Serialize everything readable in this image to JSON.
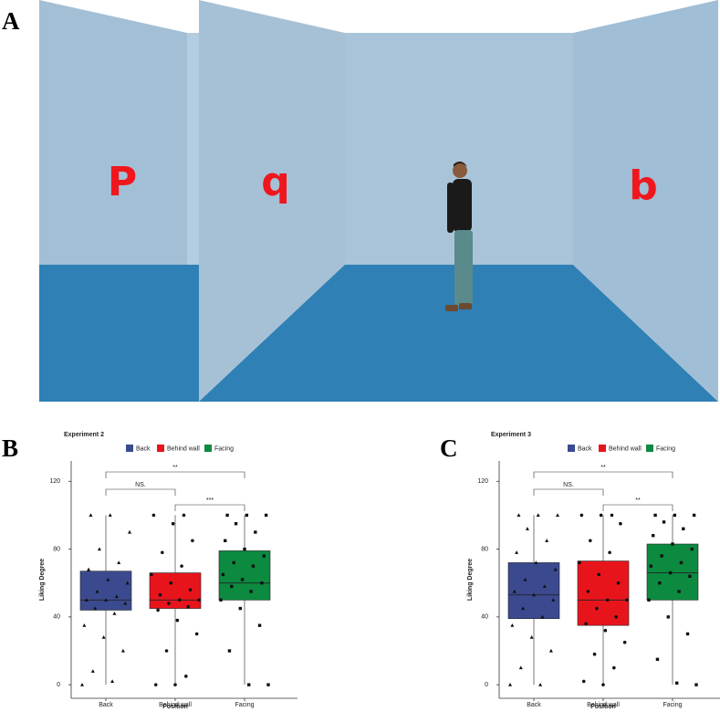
{
  "panels": [
    "A",
    "B",
    "C"
  ],
  "scene": {
    "letters": [
      "P",
      "q",
      "b"
    ]
  },
  "chart_data": [
    {
      "type": "box",
      "title": "Experiment 2",
      "xlabel": "Position",
      "ylabel": "Liking Degree",
      "categories": [
        "Back",
        "Behind wall",
        "Facing"
      ],
      "colors": [
        "#3b4a8f",
        "#e8141c",
        "#0c8a40"
      ],
      "markers": [
        "triangle",
        "circle",
        "square"
      ],
      "min": [
        0,
        0,
        0
      ],
      "q1": [
        44,
        45,
        50
      ],
      "median": [
        50,
        50,
        60
      ],
      "q3": [
        67,
        66,
        79
      ],
      "max": [
        100,
        100,
        100
      ],
      "points": [
        [
          0,
          2,
          8,
          20,
          28,
          35,
          42,
          45,
          48,
          50,
          50,
          52,
          55,
          60,
          62,
          68,
          72,
          80,
          90,
          100,
          100
        ],
        [
          0,
          0,
          5,
          20,
          30,
          38,
          44,
          46,
          48,
          50,
          50,
          53,
          56,
          60,
          65,
          70,
          78,
          85,
          95,
          100,
          100
        ],
        [
          0,
          0,
          20,
          35,
          45,
          50,
          55,
          58,
          60,
          62,
          65,
          70,
          72,
          76,
          80,
          85,
          90,
          95,
          100,
          100,
          100
        ]
      ],
      "ylim": [
        -8,
        132
      ],
      "yticks": [
        0,
        40,
        80,
        120
      ],
      "annotations": [
        {
          "label": "NS.",
          "from": 0,
          "to": 1
        },
        {
          "label": "***",
          "from": 1,
          "to": 2
        },
        {
          "label": "**",
          "from": 0,
          "to": 2
        }
      ]
    },
    {
      "type": "box",
      "title": "Experiment 3",
      "xlabel": "Position",
      "ylabel": "Liking Degree",
      "categories": [
        "Back",
        "Behind wall",
        "Facing"
      ],
      "colors": [
        "#3b4a8f",
        "#e8141c",
        "#0c8a40"
      ],
      "markers": [
        "triangle",
        "circle",
        "square"
      ],
      "min": [
        0,
        0,
        0
      ],
      "q1": [
        39,
        35,
        50
      ],
      "median": [
        53,
        50,
        66
      ],
      "q3": [
        72,
        73,
        83
      ],
      "max": [
        100,
        100,
        100
      ],
      "points": [
        [
          0,
          0,
          10,
          20,
          28,
          35,
          40,
          45,
          50,
          53,
          55,
          58,
          62,
          68,
          72,
          78,
          85,
          92,
          100,
          100,
          100
        ],
        [
          0,
          2,
          10,
          18,
          25,
          32,
          36,
          40,
          45,
          50,
          50,
          55,
          60,
          65,
          72,
          78,
          85,
          95,
          100,
          100,
          100
        ],
        [
          0,
          1,
          15,
          30,
          40,
          50,
          55,
          60,
          64,
          66,
          70,
          72,
          76,
          80,
          83,
          88,
          92,
          96,
          100,
          100,
          100
        ]
      ],
      "ylim": [
        -8,
        132
      ],
      "yticks": [
        0,
        40,
        80,
        120
      ],
      "annotations": [
        {
          "label": "NS.",
          "from": 0,
          "to": 1
        },
        {
          "label": "**",
          "from": 1,
          "to": 2
        },
        {
          "label": "**",
          "from": 0,
          "to": 2
        }
      ]
    }
  ]
}
